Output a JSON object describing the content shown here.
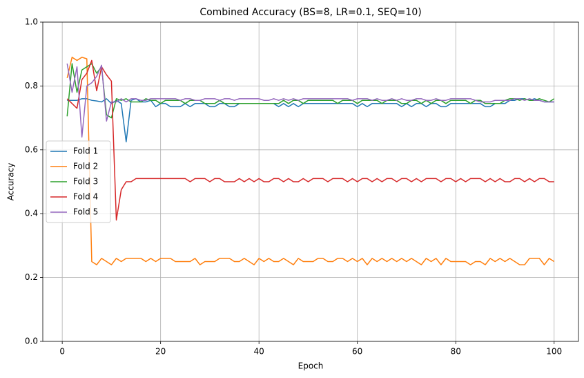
{
  "chart_data": {
    "type": "line",
    "title": "Combined Accuracy (BS=8, LR=0.1, SEQ=10)",
    "x_label": "Epoch",
    "y_label": "Accuracy",
    "x": [
      1,
      2,
      3,
      4,
      5,
      6,
      7,
      8,
      9,
      10,
      11,
      12,
      13,
      14,
      15,
      16,
      17,
      18,
      19,
      20,
      21,
      22,
      23,
      24,
      25,
      26,
      27,
      28,
      29,
      30,
      31,
      32,
      33,
      34,
      35,
      36,
      37,
      38,
      39,
      40,
      41,
      42,
      43,
      44,
      45,
      46,
      47,
      48,
      49,
      50,
      51,
      52,
      53,
      54,
      55,
      56,
      57,
      58,
      59,
      60,
      61,
      62,
      63,
      64,
      65,
      66,
      67,
      68,
      69,
      70,
      71,
      72,
      73,
      74,
      75,
      76,
      77,
      78,
      79,
      80,
      81,
      82,
      83,
      84,
      85,
      86,
      87,
      88,
      89,
      90,
      91,
      92,
      93,
      94,
      95,
      96,
      97,
      98,
      99,
      100
    ],
    "series": [
      {
        "name": "Fold 1",
        "color": "#1f77b4",
        "values": [
          0.755,
          0.755,
          0.755,
          0.76,
          0.76,
          0.755,
          0.753,
          0.75,
          0.76,
          0.745,
          0.755,
          0.745,
          0.625,
          0.755,
          0.76,
          0.75,
          0.75,
          0.755,
          0.735,
          0.745,
          0.745,
          0.735,
          0.735,
          0.735,
          0.745,
          0.735,
          0.745,
          0.745,
          0.745,
          0.735,
          0.735,
          0.745,
          0.745,
          0.735,
          0.735,
          0.745,
          0.745,
          0.745,
          0.745,
          0.745,
          0.745,
          0.745,
          0.745,
          0.735,
          0.745,
          0.735,
          0.745,
          0.735,
          0.745,
          0.745,
          0.745,
          0.745,
          0.745,
          0.745,
          0.745,
          0.745,
          0.745,
          0.745,
          0.745,
          0.735,
          0.745,
          0.735,
          0.745,
          0.745,
          0.745,
          0.745,
          0.745,
          0.745,
          0.735,
          0.745,
          0.735,
          0.745,
          0.745,
          0.735,
          0.745,
          0.745,
          0.735,
          0.735,
          0.745,
          0.745,
          0.745,
          0.745,
          0.745,
          0.745,
          0.745,
          0.735,
          0.735,
          0.745,
          0.745,
          0.745,
          0.755,
          0.755,
          0.76,
          0.76,
          0.755,
          0.76,
          0.755,
          0.75,
          0.75,
          0.75
        ]
      },
      {
        "name": "Fold 2",
        "color": "#ff7f0e",
        "values": [
          0.825,
          0.89,
          0.88,
          0.89,
          0.885,
          0.25,
          0.24,
          0.26,
          0.25,
          0.24,
          0.26,
          0.25,
          0.26,
          0.26,
          0.26,
          0.26,
          0.25,
          0.26,
          0.25,
          0.26,
          0.26,
          0.26,
          0.25,
          0.25,
          0.25,
          0.25,
          0.26,
          0.24,
          0.25,
          0.25,
          0.25,
          0.26,
          0.26,
          0.26,
          0.25,
          0.25,
          0.26,
          0.25,
          0.24,
          0.26,
          0.25,
          0.26,
          0.25,
          0.25,
          0.26,
          0.25,
          0.24,
          0.26,
          0.25,
          0.25,
          0.25,
          0.26,
          0.26,
          0.25,
          0.25,
          0.26,
          0.26,
          0.25,
          0.26,
          0.25,
          0.26,
          0.24,
          0.26,
          0.25,
          0.26,
          0.25,
          0.26,
          0.25,
          0.26,
          0.25,
          0.26,
          0.25,
          0.24,
          0.26,
          0.25,
          0.26,
          0.24,
          0.26,
          0.25,
          0.25,
          0.25,
          0.25,
          0.24,
          0.25,
          0.25,
          0.24,
          0.26,
          0.25,
          0.26,
          0.25,
          0.26,
          0.25,
          0.24,
          0.24,
          0.26,
          0.26,
          0.26,
          0.24,
          0.26,
          0.25
        ]
      },
      {
        "name": "Fold 3",
        "color": "#2ca02c",
        "values": [
          0.705,
          0.87,
          0.78,
          0.85,
          0.86,
          0.87,
          0.84,
          0.86,
          0.71,
          0.7,
          0.76,
          0.755,
          0.76,
          0.75,
          0.75,
          0.75,
          0.76,
          0.755,
          0.755,
          0.745,
          0.755,
          0.755,
          0.755,
          0.755,
          0.745,
          0.755,
          0.755,
          0.755,
          0.745,
          0.745,
          0.745,
          0.755,
          0.745,
          0.745,
          0.745,
          0.745,
          0.745,
          0.745,
          0.745,
          0.745,
          0.745,
          0.745,
          0.745,
          0.745,
          0.755,
          0.745,
          0.755,
          0.755,
          0.745,
          0.755,
          0.755,
          0.755,
          0.755,
          0.755,
          0.755,
          0.745,
          0.755,
          0.755,
          0.755,
          0.745,
          0.755,
          0.755,
          0.755,
          0.755,
          0.745,
          0.755,
          0.755,
          0.755,
          0.745,
          0.745,
          0.755,
          0.755,
          0.745,
          0.755,
          0.745,
          0.755,
          0.755,
          0.745,
          0.755,
          0.755,
          0.755,
          0.755,
          0.745,
          0.755,
          0.755,
          0.745,
          0.745,
          0.745,
          0.745,
          0.755,
          0.76,
          0.76,
          0.755,
          0.76,
          0.755,
          0.755,
          0.76,
          0.755,
          0.75,
          0.76
        ]
      },
      {
        "name": "Fold 4",
        "color": "#d62728",
        "values": [
          0.76,
          0.745,
          0.73,
          0.82,
          0.84,
          0.88,
          0.785,
          0.86,
          0.835,
          0.815,
          0.38,
          0.475,
          0.5,
          0.5,
          0.51,
          0.51,
          0.51,
          0.51,
          0.51,
          0.51,
          0.51,
          0.51,
          0.51,
          0.51,
          0.51,
          0.5,
          0.51,
          0.51,
          0.51,
          0.5,
          0.51,
          0.51,
          0.5,
          0.5,
          0.5,
          0.51,
          0.5,
          0.51,
          0.5,
          0.51,
          0.5,
          0.5,
          0.51,
          0.51,
          0.5,
          0.51,
          0.5,
          0.5,
          0.51,
          0.5,
          0.51,
          0.51,
          0.51,
          0.5,
          0.51,
          0.51,
          0.51,
          0.5,
          0.51,
          0.5,
          0.51,
          0.51,
          0.5,
          0.51,
          0.5,
          0.51,
          0.51,
          0.5,
          0.51,
          0.51,
          0.5,
          0.51,
          0.5,
          0.51,
          0.51,
          0.51,
          0.5,
          0.51,
          0.51,
          0.5,
          0.51,
          0.5,
          0.51,
          0.51,
          0.51,
          0.5,
          0.51,
          0.5,
          0.51,
          0.5,
          0.5,
          0.51,
          0.51,
          0.5,
          0.51,
          0.5,
          0.51,
          0.51,
          0.5,
          0.5
        ]
      },
      {
        "name": "Fold 5",
        "color": "#9467bd",
        "values": [
          0.87,
          0.78,
          0.86,
          0.64,
          0.8,
          0.81,
          0.83,
          0.865,
          0.69,
          0.75,
          0.75,
          0.76,
          0.75,
          0.76,
          0.76,
          0.755,
          0.755,
          0.76,
          0.76,
          0.76,
          0.76,
          0.76,
          0.76,
          0.755,
          0.76,
          0.76,
          0.755,
          0.755,
          0.76,
          0.76,
          0.76,
          0.755,
          0.76,
          0.76,
          0.755,
          0.76,
          0.76,
          0.76,
          0.76,
          0.76,
          0.755,
          0.755,
          0.76,
          0.755,
          0.76,
          0.755,
          0.76,
          0.755,
          0.76,
          0.76,
          0.76,
          0.76,
          0.76,
          0.76,
          0.76,
          0.76,
          0.76,
          0.76,
          0.755,
          0.76,
          0.76,
          0.76,
          0.755,
          0.76,
          0.755,
          0.755,
          0.76,
          0.755,
          0.76,
          0.755,
          0.755,
          0.76,
          0.76,
          0.755,
          0.755,
          0.76,
          0.755,
          0.755,
          0.76,
          0.76,
          0.76,
          0.76,
          0.76,
          0.755,
          0.75,
          0.75,
          0.75,
          0.755,
          0.755,
          0.755,
          0.755,
          0.76,
          0.76,
          0.755,
          0.76,
          0.755,
          0.755,
          0.75,
          0.75,
          0.75
        ]
      }
    ],
    "xlim": [
      -3.95,
      104.95
    ],
    "ylim": [
      0,
      1
    ],
    "xticks": [
      0,
      20,
      40,
      60,
      80,
      100
    ],
    "yticks": [
      {
        "value": 0,
        "label": "0.0"
      },
      0.2,
      0.4,
      0.6,
      0.8,
      {
        "value": 1,
        "label": "1.0"
      }
    ],
    "grid": true,
    "legend": "center left"
  }
}
